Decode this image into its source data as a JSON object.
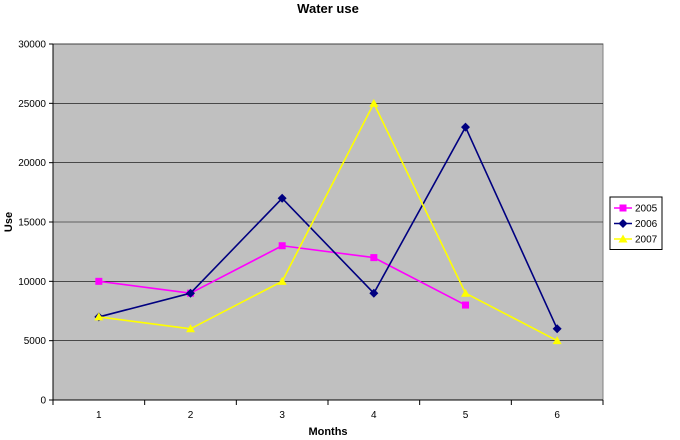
{
  "chart_data": {
    "type": "line",
    "title": "Water use",
    "xlabel": "Months",
    "ylabel": "Use",
    "x": [
      1,
      2,
      3,
      4,
      5,
      6
    ],
    "ylim": [
      0,
      30000
    ],
    "yticks": [
      0,
      5000,
      10000,
      15000,
      20000,
      25000,
      30000
    ],
    "grid": true,
    "legend_position": "right",
    "background_color": "#c0c0c0",
    "series": [
      {
        "name": "2005",
        "color": "#ff00ff",
        "marker": "square",
        "values": [
          10000,
          9000,
          13000,
          12000,
          8000,
          null
        ]
      },
      {
        "name": "2006",
        "color": "#000080",
        "marker": "diamond",
        "values": [
          7000,
          9000,
          17000,
          9000,
          23000,
          6000
        ]
      },
      {
        "name": "2007",
        "color": "#ffff00",
        "marker": "triangle",
        "values": [
          7000,
          6000,
          10000,
          25000,
          9000,
          5000
        ]
      }
    ]
  }
}
